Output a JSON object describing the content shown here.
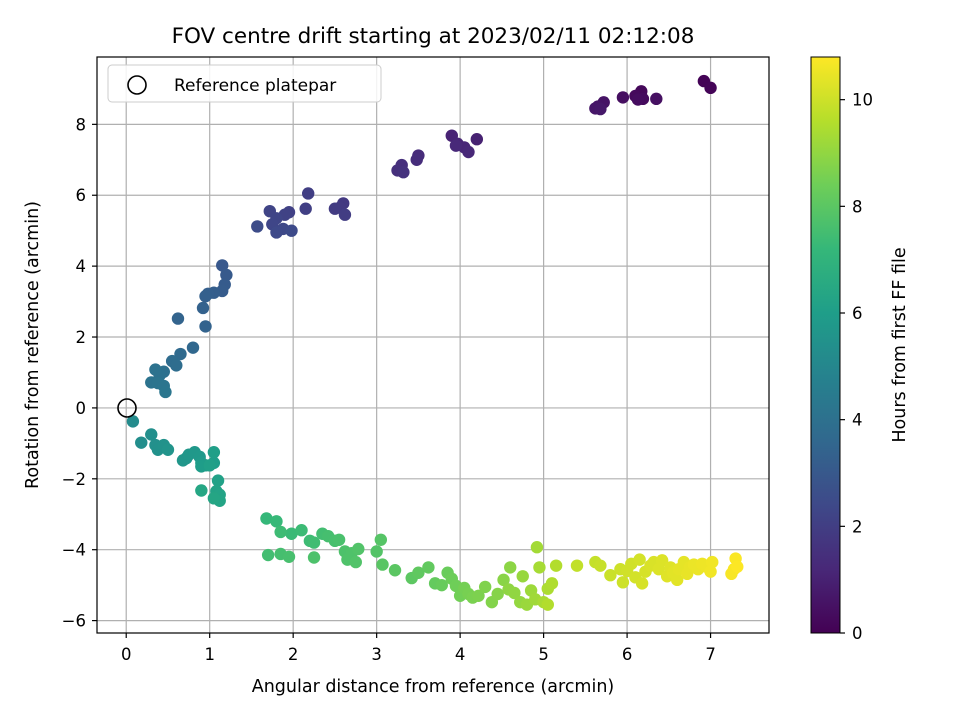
{
  "chart_data": {
    "type": "scatter",
    "title": "FOV centre drift starting at 2023/02/11 02:12:08",
    "xlabel": "Angular distance from reference (arcmin)",
    "ylabel": "Rotation from reference (arcmin)",
    "xlim": [
      -0.35,
      7.7
    ],
    "ylim": [
      -6.35,
      9.9
    ],
    "xticks": [
      0,
      1,
      2,
      3,
      4,
      5,
      6,
      7
    ],
    "yticks": [
      -6,
      -4,
      -2,
      0,
      2,
      4,
      6,
      8
    ],
    "xtick_labels": [
      "0",
      "1",
      "2",
      "3",
      "4",
      "5",
      "6",
      "7"
    ],
    "ytick_labels": [
      "−6",
      "−4",
      "−2",
      "0",
      "2",
      "4",
      "6",
      "8"
    ],
    "grid": true,
    "legend": {
      "placement": "upper-left",
      "entries": [
        {
          "label": "Reference platepar",
          "marker": "open-circle"
        }
      ]
    },
    "reference_point": {
      "x": 0,
      "y": 0
    },
    "colorbar": {
      "label": "Hours from first FF file",
      "colormap": "viridis",
      "range": [
        0,
        10.8
      ],
      "ticks": [
        0,
        2,
        4,
        6,
        8,
        10
      ],
      "tick_labels": [
        "0",
        "2",
        "4",
        "6",
        "8",
        "10"
      ]
    },
    "colormap_stops": [
      "#440154",
      "#482878",
      "#3e4989",
      "#31688e",
      "#26828e",
      "#1f9e89",
      "#35b779",
      "#6ece58",
      "#b5de2b",
      "#fde725"
    ],
    "points_format": "[x, y, hours]",
    "points": [
      [
        6.92,
        9.22,
        0.05
      ],
      [
        7.0,
        9.03,
        0.1
      ],
      [
        6.17,
        8.93,
        0.2
      ],
      [
        6.1,
        8.8,
        0.25
      ],
      [
        6.19,
        8.72,
        0.3
      ],
      [
        6.13,
        8.7,
        0.35
      ],
      [
        5.95,
        8.76,
        0.4
      ],
      [
        6.35,
        8.72,
        0.45
      ],
      [
        5.72,
        8.62,
        0.55
      ],
      [
        5.65,
        8.5,
        0.6
      ],
      [
        5.62,
        8.45,
        0.65
      ],
      [
        5.68,
        8.43,
        0.7
      ],
      [
        4.2,
        7.58,
        1.0
      ],
      [
        3.9,
        7.68,
        1.05
      ],
      [
        3.97,
        7.45,
        1.1
      ],
      [
        4.05,
        7.35,
        1.15
      ],
      [
        4.1,
        7.22,
        1.2
      ],
      [
        3.95,
        7.4,
        1.25
      ],
      [
        3.5,
        7.12,
        1.35
      ],
      [
        3.48,
        7.0,
        1.4
      ],
      [
        3.3,
        6.85,
        1.45
      ],
      [
        3.25,
        6.7,
        1.5
      ],
      [
        3.32,
        6.65,
        1.55
      ],
      [
        2.6,
        5.77,
        1.8
      ],
      [
        2.56,
        5.65,
        1.85
      ],
      [
        2.5,
        5.62,
        1.9
      ],
      [
        2.62,
        5.45,
        1.95
      ],
      [
        2.18,
        6.05,
        2.0
      ],
      [
        2.15,
        5.62,
        2.05
      ],
      [
        1.95,
        5.52,
        2.1
      ],
      [
        1.9,
        5.45,
        2.15
      ],
      [
        1.72,
        5.55,
        2.2
      ],
      [
        1.8,
        5.35,
        2.25
      ],
      [
        1.75,
        5.18,
        2.3
      ],
      [
        1.88,
        5.05,
        2.35
      ],
      [
        1.8,
        4.95,
        2.4
      ],
      [
        1.98,
        5.0,
        2.45
      ],
      [
        1.57,
        5.12,
        2.5
      ],
      [
        1.15,
        4.02,
        3.0
      ],
      [
        1.2,
        3.75,
        3.05
      ],
      [
        1.18,
        3.48,
        3.1
      ],
      [
        1.15,
        3.3,
        3.15
      ],
      [
        1.05,
        3.25,
        3.2
      ],
      [
        0.98,
        3.22,
        3.25
      ],
      [
        0.95,
        3.15,
        3.3
      ],
      [
        0.92,
        2.82,
        3.35
      ],
      [
        0.95,
        2.3,
        3.4
      ],
      [
        0.62,
        2.52,
        3.45
      ],
      [
        0.8,
        1.7,
        3.6
      ],
      [
        0.65,
        1.52,
        3.7
      ],
      [
        0.55,
        1.32,
        3.8
      ],
      [
        0.6,
        1.2,
        3.85
      ],
      [
        0.45,
        1.02,
        3.95
      ],
      [
        0.4,
        0.92,
        4.0
      ],
      [
        0.35,
        1.08,
        4.05
      ],
      [
        0.3,
        0.72,
        4.1
      ],
      [
        0.38,
        0.7,
        4.15
      ],
      [
        0.45,
        0.62,
        4.2
      ],
      [
        0.47,
        0.45,
        4.25
      ],
      [
        0.08,
        -0.38,
        5.2
      ],
      [
        0.18,
        -0.98,
        5.3
      ],
      [
        0.3,
        -0.75,
        5.35
      ],
      [
        0.35,
        -1.05,
        5.4
      ],
      [
        0.38,
        -1.18,
        5.45
      ],
      [
        0.45,
        -1.05,
        5.5
      ],
      [
        0.5,
        -1.18,
        5.55
      ],
      [
        0.72,
        -1.42,
        5.6
      ],
      [
        0.68,
        -1.48,
        5.65
      ],
      [
        0.75,
        -1.32,
        5.7
      ],
      [
        0.82,
        -1.25,
        5.75
      ],
      [
        0.88,
        -1.38,
        5.8
      ],
      [
        0.9,
        -1.55,
        5.85
      ],
      [
        0.95,
        -1.62,
        5.9
      ],
      [
        0.9,
        -1.65,
        5.95
      ],
      [
        1.05,
        -1.55,
        6.0
      ],
      [
        1.05,
        -1.25,
        6.05
      ],
      [
        1.0,
        -1.62,
        6.1
      ],
      [
        1.1,
        -2.05,
        6.15
      ],
      [
        1.08,
        -2.35,
        6.2
      ],
      [
        1.12,
        -2.45,
        6.25
      ],
      [
        1.12,
        -2.62,
        6.3
      ],
      [
        1.05,
        -2.55,
        6.35
      ],
      [
        0.9,
        -2.33,
        6.4
      ],
      [
        1.68,
        -3.12,
        7.2
      ],
      [
        1.8,
        -3.2,
        7.25
      ],
      [
        1.98,
        -3.55,
        7.3
      ],
      [
        2.1,
        -3.45,
        7.35
      ],
      [
        2.2,
        -3.75,
        7.4
      ],
      [
        2.25,
        -3.8,
        7.45
      ],
      [
        2.35,
        -3.55,
        7.5
      ],
      [
        2.42,
        -3.62,
        7.55
      ],
      [
        2.5,
        -3.75,
        7.6
      ],
      [
        2.55,
        -3.72,
        7.65
      ],
      [
        2.62,
        -4.05,
        7.7
      ],
      [
        2.7,
        -4.1,
        7.75
      ],
      [
        2.78,
        -3.98,
        7.8
      ],
      [
        3.0,
        -4.05,
        7.85
      ],
      [
        3.05,
        -3.72,
        7.9
      ],
      [
        1.85,
        -3.5,
        7.4
      ],
      [
        1.7,
        -4.15,
        7.5
      ],
      [
        1.85,
        -4.12,
        7.55
      ],
      [
        1.95,
        -4.2,
        7.6
      ],
      [
        2.25,
        -4.22,
        7.7
      ],
      [
        2.65,
        -4.28,
        7.75
      ],
      [
        2.75,
        -4.35,
        7.8
      ],
      [
        3.07,
        -4.42,
        7.95
      ],
      [
        3.22,
        -4.58,
        8.0
      ],
      [
        3.42,
        -4.8,
        8.05
      ],
      [
        3.5,
        -4.65,
        8.1
      ],
      [
        3.62,
        -4.5,
        8.15
      ],
      [
        3.7,
        -4.95,
        8.2
      ],
      [
        3.78,
        -5.0,
        8.25
      ],
      [
        3.85,
        -4.65,
        8.3
      ],
      [
        3.9,
        -4.82,
        8.35
      ],
      [
        3.95,
        -5.02,
        8.4
      ],
      [
        4.0,
        -5.3,
        8.45
      ],
      [
        4.05,
        -5.08,
        8.5
      ],
      [
        4.1,
        -5.25,
        8.55
      ],
      [
        4.15,
        -5.35,
        8.6
      ],
      [
        4.22,
        -5.3,
        8.65
      ],
      [
        4.3,
        -5.05,
        8.7
      ],
      [
        4.38,
        -5.48,
        8.75
      ],
      [
        4.45,
        -5.25,
        8.8
      ],
      [
        4.52,
        -4.85,
        8.85
      ],
      [
        4.6,
        -4.5,
        8.9
      ],
      [
        4.58,
        -5.12,
        8.95
      ],
      [
        4.65,
        -5.22,
        9.0
      ],
      [
        4.72,
        -5.48,
        9.05
      ],
      [
        4.75,
        -4.75,
        9.1
      ],
      [
        4.8,
        -5.55,
        9.15
      ],
      [
        4.85,
        -5.15,
        9.2
      ],
      [
        4.9,
        -5.4,
        9.25
      ],
      [
        4.92,
        -3.93,
        9.3
      ],
      [
        4.95,
        -4.5,
        9.35
      ],
      [
        5.0,
        -5.48,
        9.4
      ],
      [
        5.05,
        -5.1,
        9.45
      ],
      [
        5.1,
        -4.95,
        9.5
      ],
      [
        5.15,
        -4.45,
        9.55
      ],
      [
        5.05,
        -5.55,
        9.55
      ],
      [
        5.4,
        -4.45,
        9.8
      ],
      [
        5.62,
        -4.35,
        9.85
      ],
      [
        5.68,
        -4.45,
        9.9
      ],
      [
        5.8,
        -4.72,
        9.95
      ],
      [
        5.92,
        -4.55,
        10.0
      ],
      [
        5.95,
        -4.92,
        10.0
      ],
      [
        6.0,
        -4.6,
        10.05
      ],
      [
        6.05,
        -4.4,
        10.05
      ],
      [
        6.1,
        -4.78,
        10.1
      ],
      [
        6.15,
        -4.28,
        10.1
      ],
      [
        6.18,
        -4.95,
        10.15
      ],
      [
        6.22,
        -4.62,
        10.15
      ],
      [
        6.28,
        -4.45,
        10.2
      ],
      [
        6.32,
        -4.35,
        10.2
      ],
      [
        6.38,
        -4.55,
        10.25
      ],
      [
        6.42,
        -4.3,
        10.25
      ],
      [
        6.48,
        -4.75,
        10.3
      ],
      [
        6.52,
        -4.5,
        10.3
      ],
      [
        6.55,
        -4.65,
        10.35
      ],
      [
        6.6,
        -4.85,
        10.35
      ],
      [
        6.62,
        -4.55,
        10.4
      ],
      [
        6.68,
        -4.35,
        10.4
      ],
      [
        6.72,
        -4.68,
        10.45
      ],
      [
        6.75,
        -4.5,
        10.45
      ],
      [
        6.8,
        -4.42,
        10.5
      ],
      [
        6.85,
        -4.55,
        10.5
      ],
      [
        6.9,
        -4.4,
        10.55
      ],
      [
        6.95,
        -4.48,
        10.55
      ],
      [
        7.0,
        -4.62,
        10.6
      ],
      [
        7.02,
        -4.35,
        10.6
      ],
      [
        7.25,
        -4.68,
        10.7
      ],
      [
        7.28,
        -4.55,
        10.72
      ],
      [
        7.3,
        -4.25,
        10.75
      ],
      [
        7.32,
        -4.48,
        10.78
      ]
    ]
  }
}
